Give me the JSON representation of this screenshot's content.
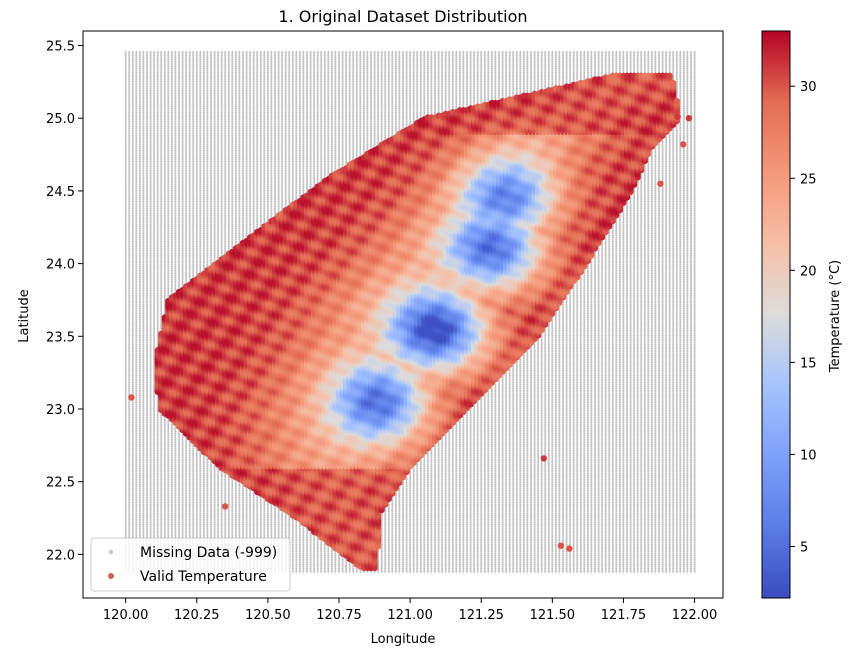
{
  "chart_data": {
    "type": "scatter",
    "title": "1. Original Dataset Distribution",
    "xlabel": "Longitude",
    "ylabel": "Latitude",
    "xlim": [
      119.85,
      122.1
    ],
    "ylim": [
      21.7,
      25.6
    ],
    "xticks": [
      120.0,
      120.25,
      120.5,
      120.75,
      121.0,
      121.25,
      121.5,
      121.75,
      122.0
    ],
    "xtick_labels": [
      "120.00",
      "120.25",
      "120.50",
      "120.75",
      "121.00",
      "121.25",
      "121.50",
      "121.75",
      "122.00"
    ],
    "yticks": [
      22.0,
      22.5,
      23.0,
      23.5,
      24.0,
      24.5,
      25.0,
      25.5
    ],
    "ytick_labels": [
      "22.0",
      "22.5",
      "23.0",
      "23.5",
      "24.0",
      "24.5",
      "25.0",
      "25.5"
    ],
    "grid": {
      "lon_min": 120.0,
      "lon_max": 122.0,
      "lat_min": 21.88,
      "lat_max": 25.46,
      "lon_step": 0.0125,
      "lat_step": 0.0125,
      "missing_value": -999,
      "missing_color": "#c0c0c0"
    },
    "series": [
      {
        "name": "Missing Data (-999)",
        "color": "#c0c0c0"
      },
      {
        "name": "Valid Temperature",
        "color": "#d6604d"
      }
    ],
    "land_boundary_west": [
      [
        21.9,
        120.83
      ],
      [
        22.25,
        120.6
      ],
      [
        22.6,
        120.33
      ],
      [
        23.0,
        120.12
      ],
      [
        23.3,
        120.1
      ],
      [
        23.75,
        120.15
      ],
      [
        24.1,
        120.38
      ],
      [
        24.6,
        120.72
      ],
      [
        25.0,
        121.05
      ],
      [
        25.2,
        121.5
      ],
      [
        25.3,
        121.72
      ]
    ],
    "land_boundary_east": [
      [
        21.9,
        120.88
      ],
      [
        22.3,
        120.9
      ],
      [
        22.6,
        121.0
      ],
      [
        23.0,
        121.2
      ],
      [
        23.5,
        121.45
      ],
      [
        24.0,
        121.62
      ],
      [
        24.5,
        121.78
      ],
      [
        24.8,
        121.85
      ],
      [
        25.0,
        121.95
      ],
      [
        25.3,
        121.92
      ]
    ],
    "isolated_points": [
      {
        "lon": 120.02,
        "lat": 23.08,
        "temp": 30
      },
      {
        "lon": 120.35,
        "lat": 22.33,
        "temp": 30
      },
      {
        "lon": 121.47,
        "lat": 22.66,
        "temp": 31
      },
      {
        "lon": 121.53,
        "lat": 22.06,
        "temp": 30
      },
      {
        "lon": 121.56,
        "lat": 22.04,
        "temp": 30
      },
      {
        "lon": 121.96,
        "lat": 24.82,
        "temp": 30
      },
      {
        "lon": 121.98,
        "lat": 25.0,
        "temp": 31
      },
      {
        "lon": 121.94,
        "lat": 25.01,
        "temp": 31
      },
      {
        "lon": 121.88,
        "lat": 24.55,
        "temp": 30
      }
    ],
    "cold_centers": [
      {
        "lon": 121.1,
        "lat": 23.55,
        "min_temp": 4
      },
      {
        "lon": 120.9,
        "lat": 23.05,
        "min_temp": 9
      },
      {
        "lon": 121.3,
        "lat": 24.1,
        "min_temp": 8
      },
      {
        "lon": 121.35,
        "lat": 24.45,
        "min_temp": 12
      }
    ],
    "lowland_temp": 31,
    "colorbar": {
      "label": "Temperature (°C)",
      "min": 2.2,
      "max": 33,
      "ticks": [
        5,
        10,
        15,
        20,
        25,
        30
      ],
      "tick_labels": [
        "5",
        "10",
        "15",
        "20",
        "25",
        "30"
      ],
      "colormap": "coolwarm"
    },
    "legend_position": "lower left"
  }
}
